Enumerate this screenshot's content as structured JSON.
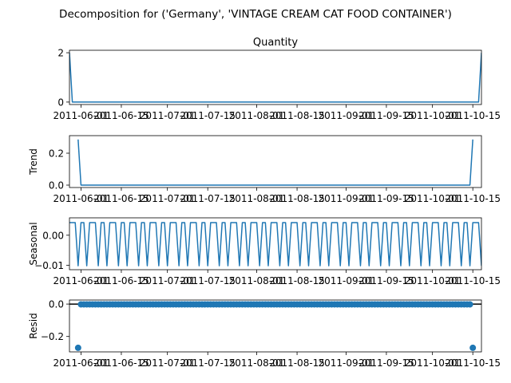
{
  "title": "Decomposition for ('Germany', 'VINTAGE CREAM CAT FOOD CONTAINER')",
  "colors": {
    "line": "#1f77b4",
    "marker": "#1f77b4",
    "axis": "#000000",
    "zero_line": "#000000"
  },
  "x_tick_labels": [
    "2011-06-01",
    "2011-06-15",
    "2011-07-01",
    "2011-07-15",
    "2011-08-01",
    "2011-08-15",
    "2011-09-01",
    "2011-09-15",
    "2011-10-01",
    "2011-10-15"
  ],
  "chart_data": [
    {
      "type": "line",
      "name": "observed",
      "title": "Quantity",
      "ylabel": "",
      "xlim": [
        "2011-05-28",
        "2011-10-18"
      ],
      "ylim": [
        -0.1,
        2.1
      ],
      "yticks": [
        0,
        2
      ],
      "grid": false,
      "x": [
        "2011-05-28",
        "2011-05-29",
        "2011-10-17",
        "2011-10-18"
      ],
      "values": [
        2,
        0,
        0,
        2
      ]
    },
    {
      "type": "line",
      "name": "trend",
      "title": "",
      "ylabel": "Trend",
      "xlim": [
        "2011-05-28",
        "2011-10-18"
      ],
      "ylim": [
        -0.015,
        0.31
      ],
      "yticks": [
        0.0,
        0.2
      ],
      "ytick_labels": [
        "0.0",
        "0.2"
      ],
      "grid": false,
      "x": [
        "2011-05-31",
        "2011-06-01",
        "2011-10-14",
        "2011-10-15"
      ],
      "values": [
        0.286,
        0,
        0,
        0.286
      ]
    },
    {
      "type": "line",
      "name": "seasonal",
      "title": "",
      "ylabel": "Seasonal",
      "xlim": [
        "2011-05-28",
        "2011-10-18"
      ],
      "ylim": [
        -0.0115,
        0.0058
      ],
      "yticks": [
        -0.01,
        0.0
      ],
      "ytick_labels": [
        "−0.01",
        "0.00"
      ],
      "grid": false,
      "pattern": {
        "start": "2011-05-28",
        "period_days": 7,
        "values": [
          0.0042,
          0.0042,
          0.0042,
          -0.0102,
          0.0042,
          0.0042,
          -0.0102
        ]
      }
    },
    {
      "type": "scatter",
      "name": "resid",
      "title": "",
      "ylabel": "Resid",
      "xlim": [
        "2011-05-28",
        "2011-10-18"
      ],
      "ylim": [
        -0.295,
        0.025
      ],
      "yticks": [
        -0.2,
        0.0
      ],
      "ytick_labels": [
        "−0.2",
        "0.0"
      ],
      "grid": false,
      "zero_line": 0,
      "start": "2011-05-31",
      "end": "2011-10-15",
      "baseline": -0.002,
      "outliers": [
        {
          "x": "2011-05-31",
          "y": -0.27
        },
        {
          "x": "2011-10-15",
          "y": -0.27
        }
      ]
    }
  ]
}
